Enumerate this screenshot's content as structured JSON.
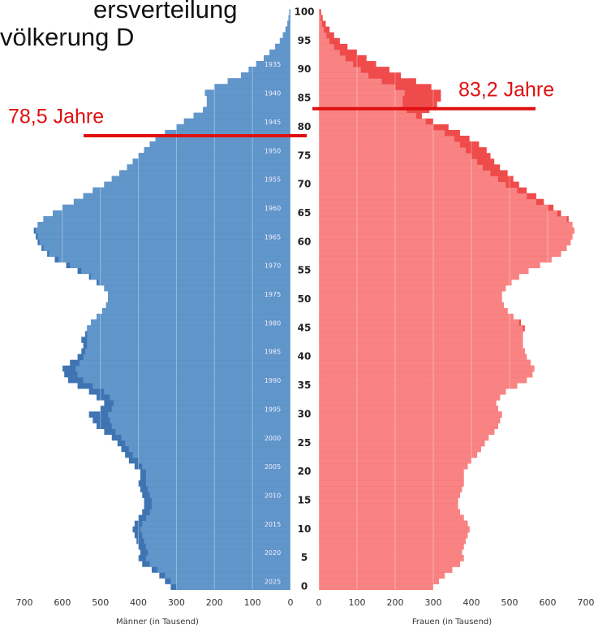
{
  "chart_data": {
    "type": "pyramid",
    "title_lines": [
      "ersverteilung",
      "völkerung D"
    ],
    "x_label_left": "Männer (in Tausend)",
    "x_label_right": "Frauen (in Tausend)",
    "xlim": [
      0,
      700
    ],
    "xticks": [
      0,
      100,
      200,
      300,
      400,
      500,
      600,
      700
    ],
    "ylim": [
      0,
      100
    ],
    "yticks": [
      0,
      5,
      10,
      15,
      20,
      25,
      30,
      35,
      40,
      45,
      50,
      55,
      60,
      65,
      70,
      75,
      80,
      85,
      90,
      95,
      100
    ],
    "y2lim": [
      2025,
      1925
    ],
    "y2ticks": [
      1935,
      1940,
      1945,
      1950,
      1955,
      1960,
      1965,
      1970,
      1975,
      1980,
      1985,
      1990,
      1995,
      2000,
      2005,
      2010,
      2015,
      2020,
      2025
    ],
    "grid": true,
    "series": [
      {
        "name": "Männer",
        "color": "#6196cb",
        "excess_color": "#3f74b3",
        "side": "left",
        "values": [
          315,
          330,
          345,
          365,
          390,
          400,
          395,
          400,
          405,
          410,
          415,
          410,
          400,
          390,
          385,
          385,
          390,
          395,
          400,
          395,
          395,
          410,
          425,
          435,
          445,
          455,
          470,
          490,
          510,
          520,
          530,
          500,
          490,
          510,
          530,
          560,
          585,
          595,
          600,
          580,
          560,
          550,
          545,
          550,
          540,
          535,
          525,
          510,
          495,
          485,
          480,
          480,
          490,
          510,
          530,
          560,
          590,
          620,
          640,
          655,
          665,
          670,
          675,
          665,
          650,
          625,
          600,
          570,
          545,
          520,
          490,
          470,
          450,
          430,
          415,
          400,
          385,
          370,
          355,
          330,
          300,
          280,
          255,
          230,
          220,
          220,
          225,
          200,
          165,
          130,
          110,
          90,
          70,
          55,
          40,
          28,
          20,
          13,
          8,
          5,
          3
        ]
      },
      {
        "name": "Frauen",
        "color": "#f98383",
        "excess_color": "#ef4b4b",
        "side": "right",
        "values": [
          300,
          315,
          330,
          350,
          370,
          380,
          375,
          380,
          385,
          390,
          395,
          390,
          380,
          370,
          365,
          365,
          370,
          375,
          380,
          380,
          380,
          390,
          400,
          415,
          425,
          435,
          445,
          460,
          470,
          475,
          480,
          470,
          465,
          475,
          490,
          520,
          545,
          560,
          565,
          555,
          545,
          540,
          535,
          535,
          535,
          540,
          530,
          510,
          495,
          485,
          480,
          480,
          490,
          505,
          525,
          550,
          580,
          610,
          635,
          650,
          660,
          665,
          670,
          665,
          655,
          635,
          615,
          590,
          570,
          545,
          525,
          510,
          495,
          475,
          460,
          450,
          440,
          420,
          395,
          370,
          340,
          300,
          270,
          290,
          310,
          320,
          320,
          295,
          255,
          215,
          185,
          150,
          125,
          100,
          75,
          55,
          40,
          28,
          18,
          10,
          6
        ]
      }
    ],
    "annotations": [
      {
        "text": "78,5 Jahre",
        "value": 78.5,
        "side": "left",
        "color": "#e01010"
      },
      {
        "text": "83,2 Jahre",
        "value": 83.2,
        "side": "right",
        "color": "#e01010"
      }
    ]
  }
}
